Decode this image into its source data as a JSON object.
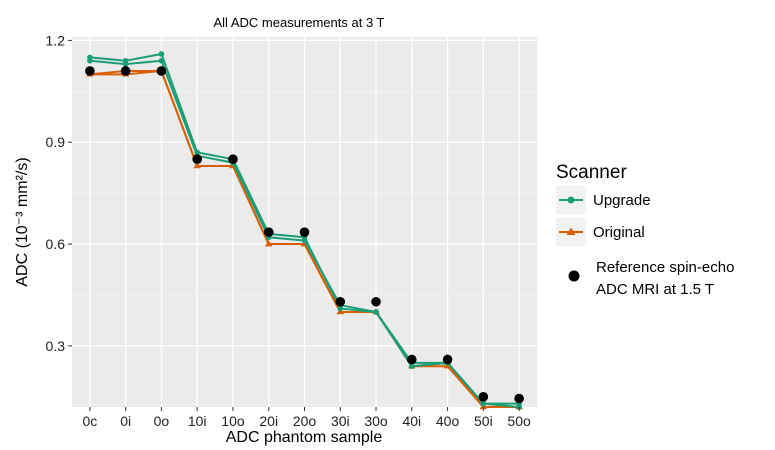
{
  "chart_data": {
    "type": "line",
    "title": "All ADC measurements at 3 T",
    "xlabel": "ADC phantom sample",
    "ylabel": "ADC (10⁻³ mm²/s)",
    "categories": [
      "0c",
      "0i",
      "0o",
      "10i",
      "10o",
      "20i",
      "20o",
      "30i",
      "30o",
      "40i",
      "40o",
      "50i",
      "50o"
    ],
    "ylim": [
      0.12,
      1.21
    ],
    "yticks": [
      0.3,
      0.6,
      0.9,
      1.2
    ],
    "ytick_labels": [
      "0.3",
      "0.6",
      "0.9",
      "1.2"
    ],
    "grid": true,
    "series": [
      {
        "name": "Upgrade",
        "color": "#1b9e77",
        "marker": "circle",
        "lines": [
          [
            1.15,
            1.14,
            1.16,
            0.87,
            0.85,
            0.63,
            0.62,
            0.41,
            0.4,
            0.25,
            0.25,
            0.13,
            0.13
          ],
          [
            1.14,
            1.13,
            1.14,
            0.86,
            0.84,
            0.62,
            0.61,
            0.42,
            0.4,
            0.24,
            0.25,
            0.13,
            0.12
          ]
        ]
      },
      {
        "name": "Original",
        "color": "#d95f02",
        "marker": "triangle",
        "lines": [
          [
            1.1,
            1.11,
            1.11,
            0.83,
            0.83,
            0.6,
            0.6,
            0.4,
            0.4,
            0.24,
            0.25,
            0.12,
            0.12
          ],
          [
            1.1,
            1.1,
            1.11,
            0.83,
            0.83,
            0.6,
            0.6,
            0.4,
            0.4,
            0.24,
            0.24,
            0.12,
            0.12
          ]
        ]
      }
    ],
    "reference": {
      "name": "Reference spin-echo ADC MRI at 1.5 T",
      "label_line1": "Reference spin-echo",
      "label_line2": "ADC MRI at 1.5 T",
      "color": "#000000",
      "values": [
        1.11,
        1.11,
        1.11,
        0.85,
        0.85,
        0.635,
        0.635,
        0.43,
        0.43,
        0.26,
        0.26,
        0.15,
        0.145
      ]
    },
    "legend": {
      "title": "Scanner",
      "position": "right"
    }
  }
}
